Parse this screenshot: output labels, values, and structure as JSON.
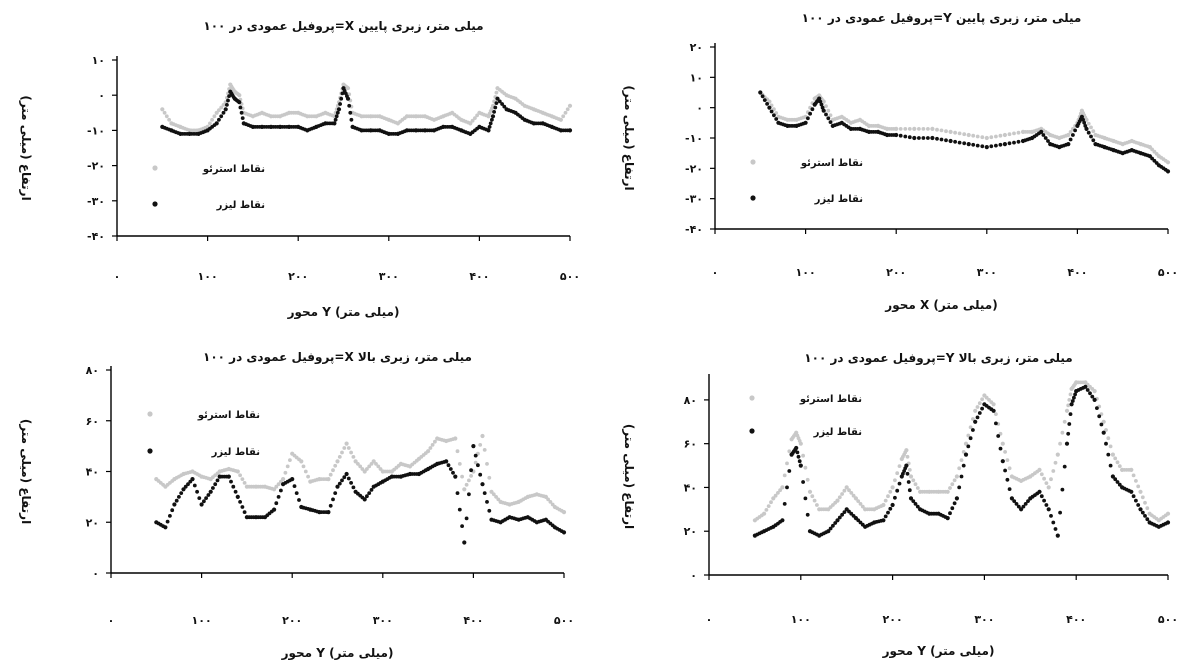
{
  "chart_data": [
    {
      "type": "scatter",
      "title": "پروفیل عمودی در ۱۰۰=X میلی متر، زبری پایین",
      "xlabel": "محور Y (میلی متر)",
      "ylabel": "ارتفاع (میلی متر)",
      "xlim": [
        0,
        500
      ],
      "ylim": [
        -40,
        10
      ],
      "xticks": [
        0,
        100,
        200,
        300,
        400,
        500
      ],
      "xtick_labels": [
        "۰",
        "۱۰۰",
        "۲۰۰",
        "۳۰۰",
        "۴۰۰",
        "۵۰۰"
      ],
      "yticks": [
        -40,
        -30,
        -20,
        -10,
        0,
        10
      ],
      "ytick_labels": [
        "-۴۰",
        "-۳۰",
        "-۲۰",
        "-۱۰",
        "۰",
        "۱۰"
      ],
      "legend_position": "center-left",
      "series": [
        {
          "name": "نقاط استرئو",
          "color": "#c8c8c8",
          "x": [
            50,
            60,
            70,
            80,
            90,
            100,
            110,
            120,
            125,
            130,
            135,
            140,
            150,
            160,
            170,
            180,
            190,
            200,
            210,
            220,
            230,
            240,
            245,
            250,
            255,
            260,
            270,
            280,
            290,
            300,
            310,
            320,
            330,
            340,
            350,
            360,
            370,
            380,
            390,
            400,
            410,
            415,
            420,
            430,
            440,
            450,
            460,
            470,
            480,
            490,
            500
          ],
          "y": [
            -4,
            -8,
            -9,
            -10,
            -10,
            -9,
            -5,
            -2,
            3,
            1,
            0,
            -5,
            -6,
            -5,
            -6,
            -6,
            -5,
            -5,
            -6,
            -6,
            -5,
            -6,
            -2,
            3,
            2,
            -5,
            -6,
            -6,
            -6,
            -7,
            -8,
            -6,
            -6,
            -6,
            -7,
            -6,
            -5,
            -7,
            -8,
            -5,
            -6,
            -3,
            2,
            0,
            -1,
            -3,
            -4,
            -5,
            -6,
            -7,
            -3
          ]
        },
        {
          "name": "نقاط لیزر",
          "color": "#111111",
          "x": [
            50,
            60,
            70,
            80,
            90,
            100,
            110,
            120,
            125,
            130,
            135,
            140,
            150,
            160,
            170,
            180,
            190,
            200,
            210,
            220,
            230,
            240,
            245,
            250,
            255,
            260,
            270,
            280,
            290,
            300,
            310,
            320,
            330,
            340,
            350,
            360,
            370,
            380,
            390,
            400,
            410,
            415,
            420,
            430,
            440,
            450,
            460,
            470,
            480,
            490,
            500
          ],
          "y": [
            -9,
            -10,
            -11,
            -11,
            -11,
            -10,
            -8,
            -4,
            1,
            -1,
            -2,
            -8,
            -9,
            -9,
            -9,
            -9,
            -9,
            -9,
            -10,
            -9,
            -8,
            -8,
            -4,
            2,
            -1,
            -9,
            -10,
            -10,
            -10,
            -11,
            -11,
            -10,
            -10,
            -10,
            -10,
            -9,
            -9,
            -10,
            -11,
            -9,
            -10,
            -6,
            -1,
            -4,
            -5,
            -7,
            -8,
            -8,
            -9,
            -10,
            -10
          ]
        }
      ]
    },
    {
      "type": "scatter",
      "title": "پروفیل عمودی در ۱۰۰=Y میلی متر، زبری پایین",
      "xlabel": "محور X (میلی متر)",
      "ylabel": "ارتفاع (میلی متر)",
      "xlim": [
        0,
        500
      ],
      "ylim": [
        -40,
        20
      ],
      "xticks": [
        0,
        100,
        200,
        300,
        400,
        500
      ],
      "xtick_labels": [
        "۰",
        "۱۰۰",
        "۲۰۰",
        "۳۰۰",
        "۴۰۰",
        "۵۰۰"
      ],
      "yticks": [
        -40,
        -30,
        -20,
        -10,
        0,
        10,
        20
      ],
      "ytick_labels": [
        "-۴۰",
        "-۳۰",
        "-۲۰",
        "-۱۰",
        "۰",
        "۱۰",
        "۲۰"
      ],
      "legend_position": "center-left",
      "series": [
        {
          "name": "نقاط استرئو",
          "color": "#c8c8c8",
          "x": [
            50,
            60,
            70,
            80,
            90,
            100,
            110,
            115,
            120,
            130,
            140,
            150,
            160,
            170,
            180,
            190,
            200,
            220,
            240,
            260,
            280,
            300,
            320,
            340,
            350,
            360,
            370,
            380,
            390,
            400,
            405,
            410,
            420,
            430,
            440,
            450,
            460,
            470,
            480,
            490,
            500
          ],
          "y": [
            5,
            2,
            -3,
            -4,
            -4,
            -3,
            3,
            4,
            2,
            -4,
            -3,
            -5,
            -4,
            -6,
            -6,
            -7,
            -7,
            -7,
            -7,
            -8,
            -9,
            -10,
            -9,
            -8,
            -8,
            -7,
            -9,
            -10,
            -9,
            -5,
            -1,
            -4,
            -9,
            -10,
            -11,
            -12,
            -11,
            -12,
            -13,
            -16,
            -18
          ]
        },
        {
          "name": "نقاط لیزر",
          "color": "#111111",
          "x": [
            50,
            60,
            70,
            80,
            90,
            100,
            110,
            115,
            120,
            130,
            140,
            150,
            160,
            170,
            180,
            190,
            200,
            220,
            240,
            260,
            280,
            300,
            320,
            340,
            350,
            360,
            370,
            380,
            390,
            400,
            405,
            410,
            420,
            430,
            440,
            450,
            460,
            470,
            480,
            490,
            500
          ],
          "y": [
            5,
            0,
            -5,
            -6,
            -6,
            -5,
            1,
            3,
            -1,
            -6,
            -5,
            -7,
            -7,
            -8,
            -8,
            -9,
            -9,
            -10,
            -10,
            -11,
            -12,
            -13,
            -12,
            -11,
            -10,
            -8,
            -12,
            -13,
            -12,
            -6,
            -3,
            -7,
            -12,
            -13,
            -14,
            -15,
            -14,
            -15,
            -16,
            -19,
            -21
          ]
        }
      ]
    },
    {
      "type": "scatter",
      "title": "پروفیل عمودی در ۱۰۰=X میلی متر، زبری بالا",
      "xlabel": "محور Y (میلی متر)",
      "ylabel": "ارتفاع (میلی متر)",
      "xlim": [
        0,
        500
      ],
      "ylim": [
        0,
        80
      ],
      "xticks": [
        0,
        100,
        200,
        300,
        400,
        500
      ],
      "xtick_labels": [
        "۰",
        "۱۰۰",
        "۲۰۰",
        "۳۰۰",
        "۴۰۰",
        "۵۰۰"
      ],
      "yticks": [
        0,
        20,
        40,
        60,
        80
      ],
      "ytick_labels": [
        "۰",
        "۲۰",
        "۴۰",
        "۶۰",
        "۸۰"
      ],
      "legend_position": "top-left",
      "series": [
        {
          "name": "نقاط استرئو",
          "color": "#c8c8c8",
          "x": [
            50,
            60,
            70,
            80,
            90,
            100,
            110,
            120,
            130,
            140,
            150,
            160,
            170,
            180,
            190,
            200,
            210,
            220,
            230,
            240,
            250,
            260,
            270,
            280,
            290,
            300,
            310,
            320,
            330,
            340,
            350,
            360,
            370,
            380,
            390,
            400,
            410,
            420,
            430,
            440,
            450,
            460,
            470,
            480,
            490,
            500
          ],
          "y": [
            37,
            34,
            37,
            39,
            40,
            38,
            37,
            40,
            41,
            40,
            34,
            34,
            34,
            33,
            37,
            47,
            44,
            36,
            37,
            37,
            44,
            51,
            44,
            40,
            44,
            40,
            40,
            43,
            42,
            45,
            48,
            53,
            52,
            53,
            33,
            40,
            54,
            32,
            28,
            27,
            28,
            30,
            31,
            30,
            26,
            24
          ]
        },
        {
          "name": "نقاط لیزر",
          "color": "#111111",
          "x": [
            50,
            60,
            70,
            80,
            90,
            100,
            110,
            120,
            130,
            140,
            150,
            160,
            170,
            180,
            190,
            200,
            210,
            220,
            230,
            240,
            250,
            260,
            270,
            280,
            290,
            300,
            310,
            320,
            330,
            340,
            350,
            360,
            370,
            380,
            390,
            400,
            410,
            420,
            430,
            440,
            450,
            460,
            470,
            480,
            490,
            500
          ],
          "y": [
            20,
            18,
            27,
            33,
            37,
            27,
            32,
            38,
            38,
            30,
            22,
            22,
            22,
            25,
            35,
            37,
            26,
            25,
            24,
            24,
            34,
            39,
            32,
            29,
            34,
            36,
            38,
            38,
            39,
            39,
            41,
            43,
            44,
            38,
            12,
            50,
            35,
            21,
            20,
            22,
            21,
            22,
            20,
            21,
            18,
            16
          ]
        }
      ]
    },
    {
      "type": "scatter",
      "title": "پروفیل عمودی در ۱۰۰=Y میلی متر، زبری بالا",
      "xlabel": "محور Y (میلی متر)",
      "ylabel": "ارتفاع (میلی متر)",
      "xlim": [
        0,
        500
      ],
      "ylim": [
        0,
        90
      ],
      "xticks": [
        0,
        100,
        200,
        300,
        400,
        500
      ],
      "xtick_labels": [
        "۰",
        "۱۰۰",
        "۲۰۰",
        "۳۰۰",
        "۴۰۰",
        "۵۰۰"
      ],
      "yticks": [
        0,
        20,
        40,
        60,
        80
      ],
      "ytick_labels": [
        "۰",
        "۲۰",
        "۴۰",
        "۶۰",
        "۸۰"
      ],
      "legend_position": "top-left",
      "series": [
        {
          "name": "نقاط استرئو",
          "color": "#c8c8c8",
          "x": [
            50,
            60,
            70,
            80,
            90,
            95,
            100,
            110,
            120,
            130,
            140,
            150,
            160,
            170,
            180,
            190,
            200,
            210,
            215,
            220,
            230,
            240,
            250,
            260,
            270,
            280,
            290,
            300,
            310,
            320,
            330,
            340,
            350,
            360,
            370,
            380,
            390,
            395,
            400,
            410,
            420,
            430,
            440,
            450,
            460,
            470,
            480,
            490,
            500
          ],
          "y": [
            25,
            28,
            35,
            40,
            62,
            65,
            60,
            38,
            30,
            30,
            34,
            40,
            35,
            30,
            30,
            32,
            40,
            53,
            57,
            45,
            38,
            38,
            38,
            38,
            45,
            60,
            75,
            82,
            78,
            60,
            45,
            43,
            45,
            48,
            40,
            55,
            75,
            85,
            88,
            88,
            84,
            70,
            55,
            48,
            48,
            38,
            28,
            25,
            28
          ]
        },
        {
          "name": "نقاط لیزر",
          "color": "#111111",
          "x": [
            50,
            60,
            70,
            80,
            90,
            95,
            100,
            110,
            120,
            130,
            140,
            150,
            160,
            170,
            180,
            190,
            200,
            210,
            215,
            220,
            230,
            240,
            250,
            260,
            270,
            280,
            290,
            300,
            310,
            320,
            330,
            340,
            350,
            360,
            370,
            380,
            390,
            395,
            400,
            410,
            420,
            430,
            440,
            450,
            460,
            470,
            480,
            490,
            500
          ],
          "y": [
            18,
            20,
            22,
            25,
            55,
            58,
            50,
            20,
            18,
            20,
            25,
            30,
            26,
            22,
            24,
            25,
            32,
            45,
            50,
            35,
            30,
            28,
            28,
            26,
            35,
            55,
            70,
            78,
            75,
            52,
            35,
            30,
            35,
            38,
            30,
            18,
            60,
            78,
            84,
            86,
            80,
            65,
            45,
            40,
            38,
            30,
            24,
            22,
            24
          ]
        }
      ]
    }
  ]
}
